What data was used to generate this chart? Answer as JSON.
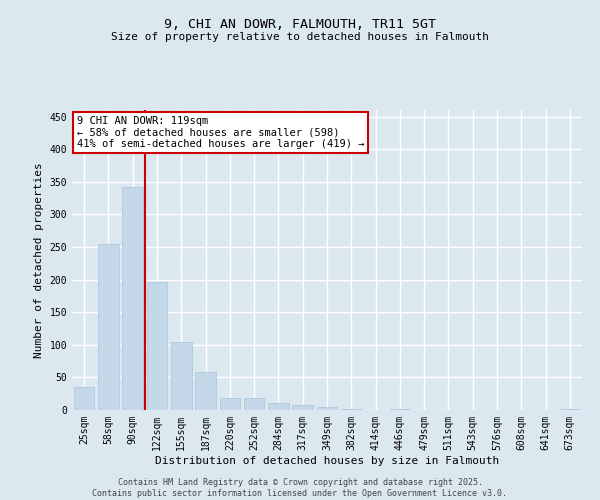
{
  "title": "9, CHI AN DOWR, FALMOUTH, TR11 5GT",
  "subtitle": "Size of property relative to detached houses in Falmouth",
  "xlabel": "Distribution of detached houses by size in Falmouth",
  "ylabel": "Number of detached properties",
  "categories": [
    "25sqm",
    "58sqm",
    "90sqm",
    "122sqm",
    "155sqm",
    "187sqm",
    "220sqm",
    "252sqm",
    "284sqm",
    "317sqm",
    "349sqm",
    "382sqm",
    "414sqm",
    "446sqm",
    "479sqm",
    "511sqm",
    "543sqm",
    "576sqm",
    "608sqm",
    "641sqm",
    "673sqm"
  ],
  "values": [
    35,
    255,
    342,
    197,
    104,
    58,
    19,
    19,
    10,
    7,
    4,
    1,
    0,
    1,
    0,
    0,
    0,
    0,
    0,
    0,
    2
  ],
  "bar_color": "#c5d8ea",
  "bar_edge_color": "#a8c4d8",
  "background_color": "#dce8f0",
  "grid_color": "#ffffff",
  "vline_color": "#cc0000",
  "vline_x_index": 2.5,
  "annotation_text": "9 CHI AN DOWR: 119sqm\n← 58% of detached houses are smaller (598)\n41% of semi-detached houses are larger (419) →",
  "annotation_box_facecolor": "#ffffff",
  "annotation_box_edgecolor": "#cc0000",
  "footer_text": "Contains HM Land Registry data © Crown copyright and database right 2025.\nContains public sector information licensed under the Open Government Licence v3.0.",
  "ylim": [
    0,
    460
  ],
  "yticks": [
    0,
    50,
    100,
    150,
    200,
    250,
    300,
    350,
    400,
    450
  ],
  "title_fontsize": 9.5,
  "subtitle_fontsize": 8,
  "ylabel_fontsize": 8,
  "xlabel_fontsize": 8,
  "tick_fontsize": 7,
  "annotation_fontsize": 7.5,
  "footer_fontsize": 6
}
